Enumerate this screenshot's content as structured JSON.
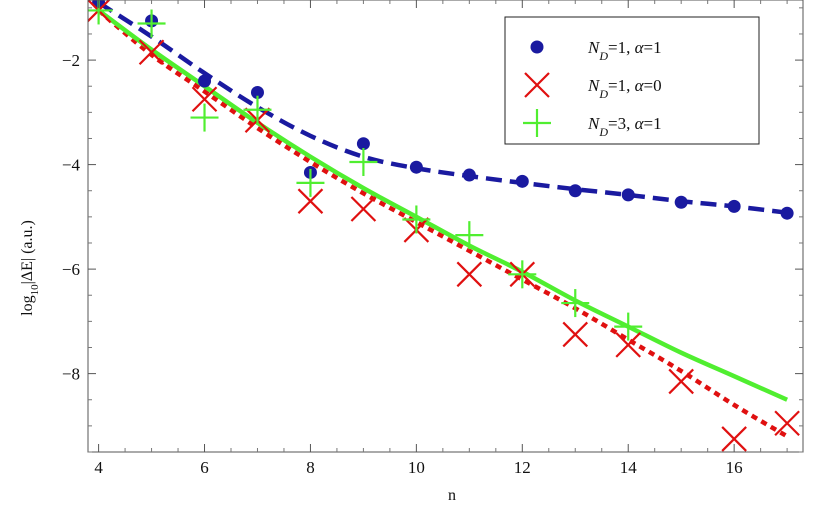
{
  "chart_data": {
    "type": "scatter",
    "xlabel": "n",
    "ylabel": "log10|ΔE| (a.u.)",
    "ylabel_parts": {
      "prefix": "log",
      "sub": "10",
      "suffix": "|ΔE| (a.u.)"
    },
    "xlim": [
      3.8,
      17.3
    ],
    "ylim": [
      -9.5,
      -0.85
    ],
    "x_ticks": [
      4,
      6,
      8,
      10,
      12,
      14,
      16
    ],
    "y_ticks": [
      -2,
      -4,
      -6,
      -8
    ],
    "grid": false,
    "legend_position": "top-right",
    "series": [
      {
        "name": "N_D=1, α=1",
        "legend_parts": {
          "a": "N",
          "sub": "D",
          "b": "=1, ",
          "greek": "α",
          "c": "=1"
        },
        "marker": "circle",
        "color": "#1a1aa0",
        "points": [
          [
            4,
            -0.9
          ],
          [
            5,
            -1.25
          ],
          [
            6,
            -2.4
          ],
          [
            7,
            -2.62
          ],
          [
            8,
            -4.15
          ],
          [
            9,
            -3.6
          ],
          [
            10,
            -4.05
          ],
          [
            11,
            -4.2
          ],
          [
            12,
            -4.32
          ],
          [
            13,
            -4.5
          ],
          [
            14,
            -4.58
          ],
          [
            15,
            -4.72
          ],
          [
            16,
            -4.8
          ],
          [
            17,
            -4.93
          ]
        ],
        "fit": {
          "style": "dashed",
          "color": "#1a1aa0",
          "points": [
            [
              4,
              -0.9
            ],
            [
              5,
              -1.55
            ],
            [
              6,
              -2.25
            ],
            [
              7,
              -2.9
            ],
            [
              8,
              -3.45
            ],
            [
              9,
              -3.85
            ],
            [
              10,
              -4.07
            ],
            [
              11,
              -4.22
            ],
            [
              12,
              -4.35
            ],
            [
              13,
              -4.47
            ],
            [
              14,
              -4.58
            ],
            [
              15,
              -4.7
            ],
            [
              16,
              -4.8
            ],
            [
              17,
              -4.92
            ]
          ]
        }
      },
      {
        "name": "N_D=1, α=0",
        "legend_parts": {
          "a": "N",
          "sub": "D",
          "b": "=1, ",
          "greek": "α",
          "c": "=0"
        },
        "marker": "x",
        "color": "#e01010",
        "points": [
          [
            4,
            -1.05
          ],
          [
            5,
            -1.85
          ],
          [
            6,
            -2.75
          ],
          [
            7,
            -3.15
          ],
          [
            8,
            -4.7
          ],
          [
            9,
            -4.85
          ],
          [
            10,
            -5.25
          ],
          [
            11,
            -6.1
          ],
          [
            12,
            -6.1
          ],
          [
            13,
            -7.25
          ],
          [
            14,
            -7.45
          ],
          [
            15,
            -8.15
          ],
          [
            16,
            -9.25
          ],
          [
            17,
            -8.95
          ]
        ],
        "fit": {
          "style": "dotted",
          "color": "#e01010",
          "points": [
            [
              4,
              -1.05
            ],
            [
              5,
              -1.9
            ],
            [
              6,
              -2.6
            ],
            [
              7,
              -3.3
            ],
            [
              8,
              -3.95
            ],
            [
              9,
              -4.55
            ],
            [
              10,
              -5.1
            ],
            [
              11,
              -5.65
            ],
            [
              12,
              -6.2
            ],
            [
              13,
              -6.75
            ],
            [
              14,
              -7.35
            ],
            [
              15,
              -7.95
            ],
            [
              16,
              -8.6
            ],
            [
              17,
              -9.2
            ]
          ]
        }
      },
      {
        "name": "N_D=3, α=1",
        "legend_parts": {
          "a": "N",
          "sub": "D",
          "b": "=3, ",
          "greek": "α",
          "c": "=1"
        },
        "marker": "plus",
        "color": "#50ee30",
        "points": [
          [
            4,
            -1.05
          ],
          [
            5,
            -1.3
          ],
          [
            6,
            -3.1
          ],
          [
            7,
            -2.95
          ],
          [
            8,
            -4.35
          ],
          [
            9,
            -3.95
          ],
          [
            10,
            -5.05
          ],
          [
            11,
            -5.35
          ],
          [
            12,
            -6.1
          ],
          [
            13,
            -6.65
          ],
          [
            14,
            -7.1
          ]
        ],
        "fit": {
          "style": "solid",
          "color": "#50ee30",
          "points": [
            [
              4,
              -1.05
            ],
            [
              5,
              -1.8
            ],
            [
              6,
              -2.5
            ],
            [
              7,
              -3.2
            ],
            [
              8,
              -3.85
            ],
            [
              9,
              -4.45
            ],
            [
              10,
              -5.0
            ],
            [
              11,
              -5.55
            ],
            [
              12,
              -6.05
            ],
            [
              13,
              -6.6
            ],
            [
              14,
              -7.1
            ],
            [
              15,
              -7.6
            ],
            [
              16,
              -8.05
            ],
            [
              17,
              -8.5
            ]
          ]
        }
      }
    ]
  }
}
